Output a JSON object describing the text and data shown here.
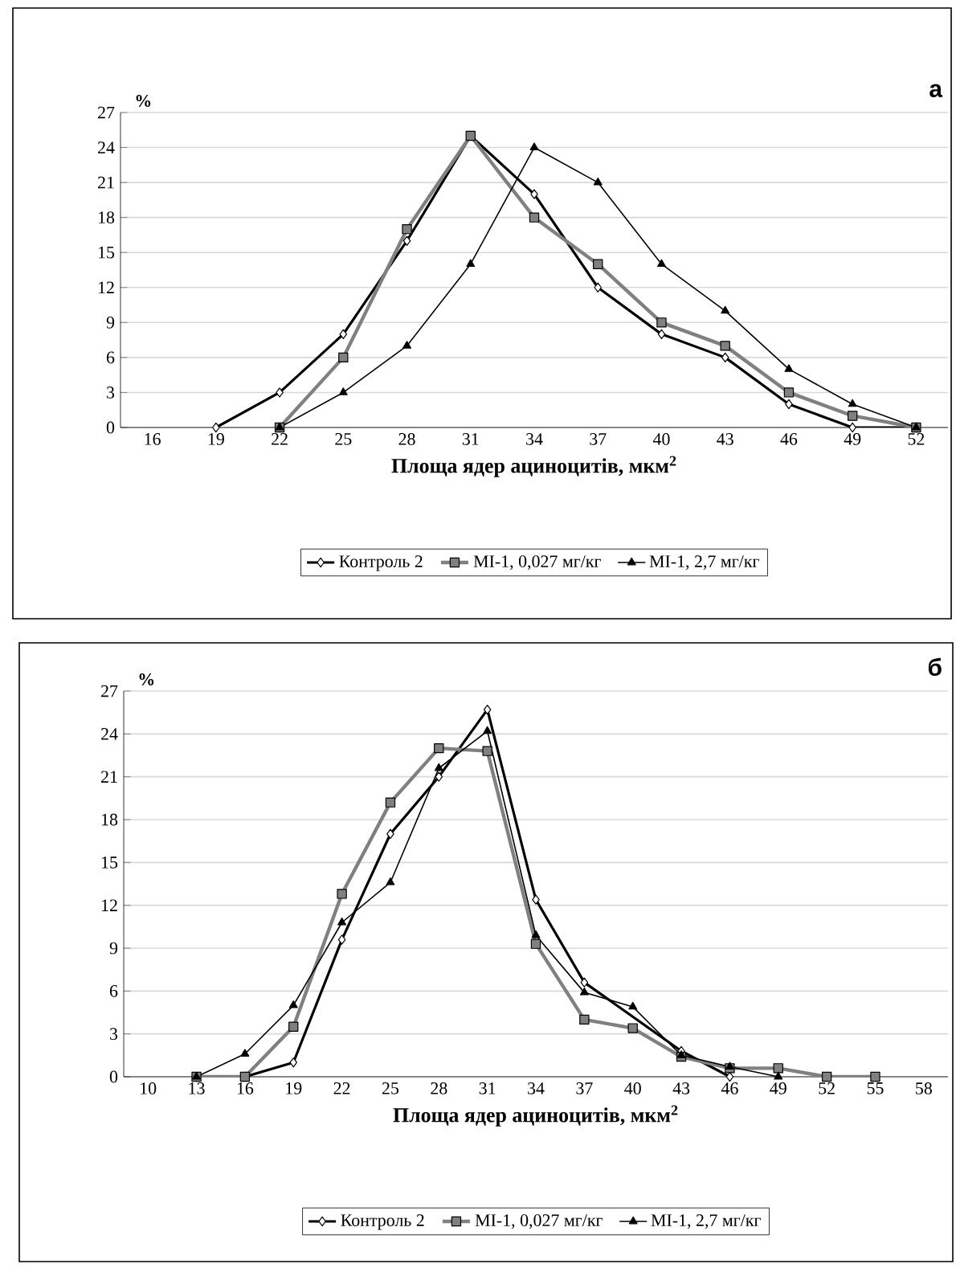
{
  "chart_data": [
    {
      "type": "line",
      "title": "а",
      "ylabel": "%",
      "xlabel": "Площа ядер ациноцитів, мкм$^{2}$",
      "categories": [
        "16",
        "19",
        "22",
        "25",
        "28",
        "31",
        "34",
        "37",
        "40",
        "43",
        "46",
        "49",
        "52"
      ],
      "ylim": [
        0,
        27
      ],
      "yticks": [
        0,
        3,
        6,
        9,
        12,
        15,
        18,
        21,
        24,
        27
      ],
      "grid": "y",
      "legend": "bottom",
      "series": [
        {
          "name": "Контроль 2",
          "color": "#000000",
          "marker": "diamond",
          "values": [
            null,
            0,
            3,
            8,
            16,
            25,
            20,
            12,
            8,
            6,
            2,
            0,
            0
          ]
        },
        {
          "name": "МІ-1, 0,027 мг/кг",
          "color": "#808080",
          "marker": "square",
          "values": [
            null,
            null,
            0,
            6,
            17,
            25,
            18,
            14,
            9,
            7,
            3,
            1,
            0
          ]
        },
        {
          "name": "МІ-1, 2,7 мг/кг",
          "color": "#000000",
          "marker": "triangle",
          "values": [
            null,
            null,
            0,
            3,
            7,
            14,
            24,
            21,
            14,
            10,
            5,
            2,
            0
          ]
        }
      ]
    },
    {
      "type": "line",
      "title": "б",
      "ylabel": "%",
      "xlabel": "Площа ядер ациноцитів, мкм$^{2}$",
      "categories": [
        "10",
        "13",
        "16",
        "19",
        "22",
        "25",
        "28",
        "31",
        "34",
        "37",
        "40",
        "43",
        "46",
        "49",
        "52",
        "55",
        "58"
      ],
      "ylim": [
        0,
        27
      ],
      "yticks": [
        0,
        3,
        6,
        9,
        12,
        15,
        18,
        21,
        24,
        27
      ],
      "grid": "y",
      "legend": "bottom",
      "series": [
        {
          "name": "Контроль 2",
          "color": "#000000",
          "marker": "diamond",
          "values": [
            null,
            0,
            0,
            1,
            9.6,
            17,
            21,
            25.7,
            12.4,
            6.6,
            null,
            1.8,
            0,
            null,
            null,
            null,
            null
          ]
        },
        {
          "name": "МІ-1, 0,027 мг/кг",
          "color": "#808080",
          "marker": "square",
          "values": [
            null,
            0,
            0,
            3.5,
            12.8,
            19.2,
            23,
            22.8,
            9.3,
            4,
            3.4,
            1.4,
            0.6,
            0.6,
            0,
            0,
            null
          ]
        },
        {
          "name": "МІ-1, 2,7 мг/кг",
          "color": "#000000",
          "marker": "triangle",
          "values": [
            null,
            0,
            1.6,
            5,
            10.8,
            13.6,
            21.6,
            24.2,
            9.9,
            5.9,
            4.9,
            1.5,
            0.7,
            0,
            null,
            null,
            null
          ]
        }
      ]
    }
  ]
}
